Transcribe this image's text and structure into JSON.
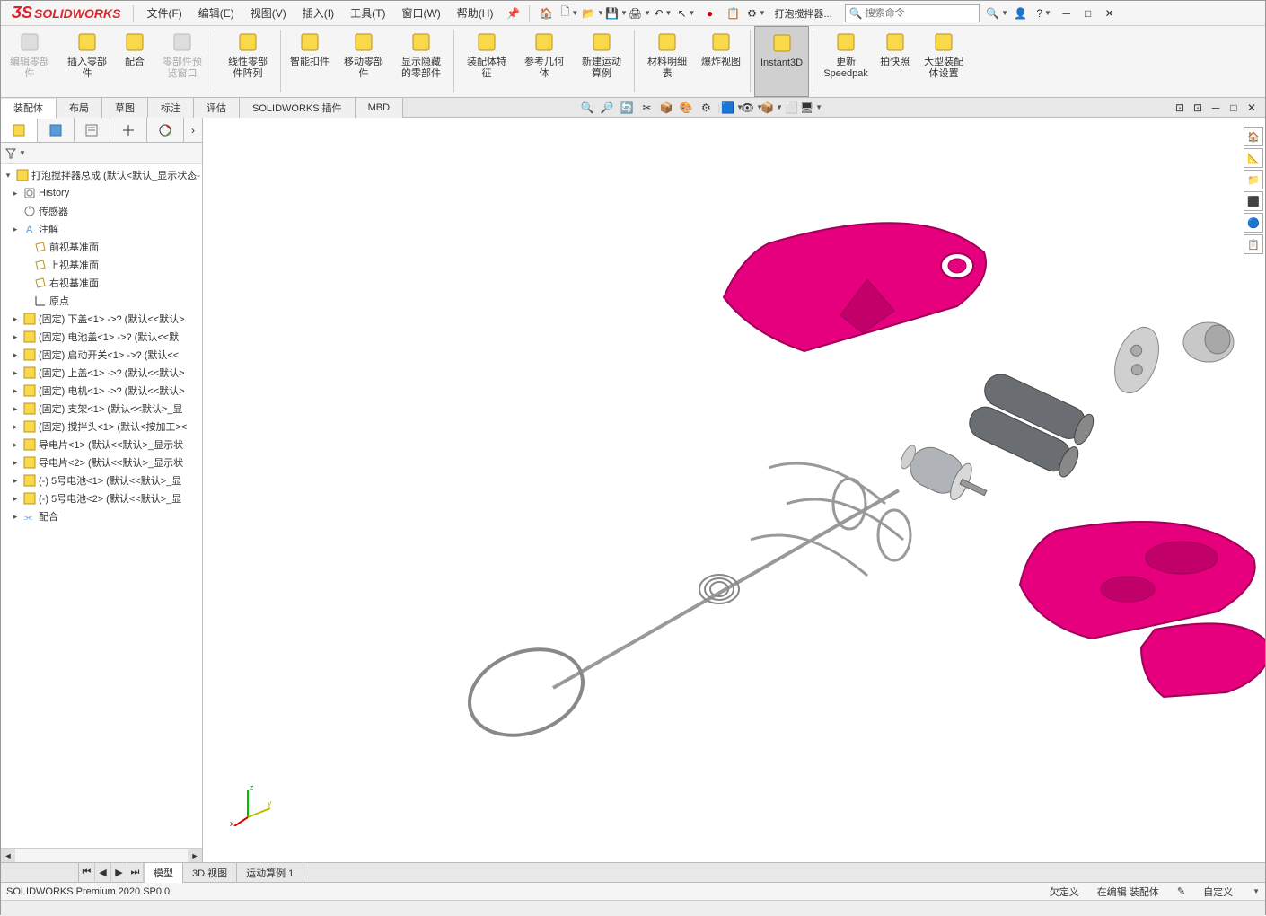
{
  "colors": {
    "accent": "#d9252b",
    "model_pink": "#e6007e",
    "model_grey": "#8a8f94"
  },
  "app": {
    "logo": "SOLIDWORKS"
  },
  "menu": {
    "items": [
      "文件(F)",
      "编辑(E)",
      "视图(V)",
      "插入(I)",
      "工具(T)",
      "窗口(W)",
      "帮助(H)"
    ],
    "doc_name": "打泡搅拌器...",
    "search_placeholder": "搜索命令"
  },
  "ribbon": {
    "buttons": [
      {
        "label": "编辑零部件",
        "disabled": true
      },
      {
        "label": "插入零部件",
        "disabled": false
      },
      {
        "label": "配合",
        "disabled": false
      },
      {
        "label": "零部件预览窗口",
        "disabled": true
      },
      {
        "label": "线性零部件阵列",
        "disabled": false
      },
      {
        "label": "智能扣件",
        "disabled": false
      },
      {
        "label": "移动零部件",
        "disabled": false
      },
      {
        "label": "显示隐藏的零部件",
        "disabled": false
      },
      {
        "label": "装配体特征",
        "disabled": false
      },
      {
        "label": "参考几何体",
        "disabled": false
      },
      {
        "label": "新建运动算例",
        "disabled": false
      },
      {
        "label": "材料明细表",
        "disabled": false
      },
      {
        "label": "爆炸视图",
        "disabled": false
      },
      {
        "label": "Instant3D",
        "disabled": false,
        "active": true
      },
      {
        "label": "更新Speedpak",
        "disabled": false
      },
      {
        "label": "拍快照",
        "disabled": false
      },
      {
        "label": "大型装配体设置",
        "disabled": false
      }
    ]
  },
  "tabs": [
    "装配体",
    "布局",
    "草图",
    "标注",
    "评估",
    "SOLIDWORKS 插件",
    "MBD"
  ],
  "active_tab": 0,
  "tree": {
    "root": "打泡搅拌器总成  (默认<默认_显示状态-",
    "items": [
      {
        "icon": "history",
        "label": "History",
        "arrow": true
      },
      {
        "icon": "sensor",
        "label": "传感器",
        "arrow": false
      },
      {
        "icon": "annot",
        "label": "注解",
        "arrow": true
      },
      {
        "icon": "plane",
        "label": "前视基准面",
        "arrow": false,
        "indent": 1
      },
      {
        "icon": "plane",
        "label": "上视基准面",
        "arrow": false,
        "indent": 1
      },
      {
        "icon": "plane",
        "label": "右视基准面",
        "arrow": false,
        "indent": 1
      },
      {
        "icon": "origin",
        "label": "原点",
        "arrow": false,
        "indent": 1
      },
      {
        "icon": "part",
        "label": "(固定) 下盖<1> ->? (默认<<默认>",
        "arrow": true
      },
      {
        "icon": "part",
        "label": "(固定) 电池盖<1> ->? (默认<<默",
        "arrow": true
      },
      {
        "icon": "part",
        "label": "(固定) 启动开关<1> ->? (默认<<",
        "arrow": true
      },
      {
        "icon": "part",
        "label": "(固定) 上盖<1> ->? (默认<<默认>",
        "arrow": true
      },
      {
        "icon": "part",
        "label": "(固定) 电机<1> ->? (默认<<默认>",
        "arrow": true
      },
      {
        "icon": "part",
        "label": "(固定) 支架<1> (默认<<默认>_显",
        "arrow": true
      },
      {
        "icon": "part",
        "label": "(固定) 搅拌头<1> (默认<按加工><",
        "arrow": true
      },
      {
        "icon": "part",
        "label": "导电片<1> (默认<<默认>_显示状",
        "arrow": true
      },
      {
        "icon": "part",
        "label": "导电片<2> (默认<<默认>_显示状",
        "arrow": true
      },
      {
        "icon": "part",
        "label": "(-) 5号电池<1> (默认<<默认>_显",
        "arrow": true
      },
      {
        "icon": "part",
        "label": "(-) 5号电池<2> (默认<<默认>_显",
        "arrow": true
      },
      {
        "icon": "mate",
        "label": "配合",
        "arrow": true
      }
    ]
  },
  "bottom_tabs": [
    "模型",
    "3D 视图",
    "运动算例 1"
  ],
  "active_bottom_tab": 0,
  "status": {
    "left": "SOLIDWORKS Premium 2020 SP0.0",
    "defined": "欠定义",
    "editing": "在编辑 装配体",
    "custom": "自定义"
  }
}
